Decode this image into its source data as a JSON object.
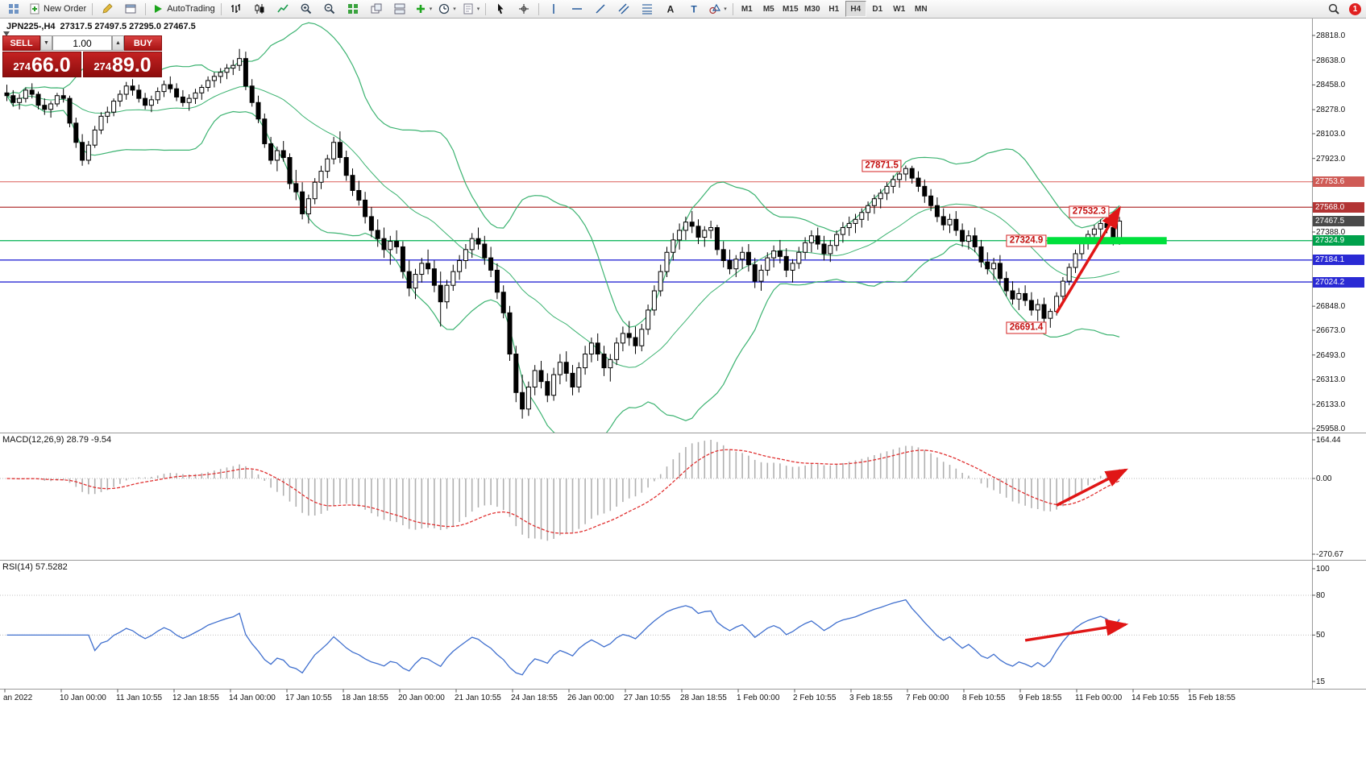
{
  "toolbar": {
    "new_order_label": "New Order",
    "autotrading_label": "AutoTrading",
    "notification_count": "1",
    "timeframes": [
      "M1",
      "M5",
      "M15",
      "M30",
      "H1",
      "H4",
      "D1",
      "W1",
      "MN"
    ],
    "active_timeframe": "H4",
    "icon_names": [
      "charts-grid-icon",
      "new-order-icon",
      "metaeditor-icon",
      "data-window-icon",
      "autotrading-play-icon",
      "bar-chart-icon",
      "candlestick-chart-icon",
      "line-chart-icon",
      "zoom-in-icon",
      "zoom-out-icon",
      "tile-windows-icon",
      "cascade-windows-icon",
      "arrange-windows-icon",
      "add-indicator-icon",
      "periods-icon",
      "templates-icon",
      "cursor-icon",
      "crosshair-icon",
      "vertical-line-icon",
      "horizontal-line-icon",
      "trendline-icon",
      "channel-icon",
      "fibonacci-icon",
      "text-icon",
      "label-icon",
      "arrows-icon",
      "search-icon"
    ]
  },
  "chart": {
    "header": {
      "symbol": "JPN225-,H4",
      "ohlc": "27317.5 27497.5 27295.0 27467.5"
    },
    "order_panel": {
      "sell_label": "SELL",
      "buy_label": "BUY",
      "volume": "1.00",
      "sell_price": "27466.0",
      "buy_price": "27489.0"
    },
    "price_axis": {
      "max": 28818.0,
      "min": 25958.0,
      "ticks": [
        "28818.0",
        "28638.0",
        "28458.0",
        "28278.0",
        "28103.0",
        "27923.0",
        "27388.0",
        "26848.0",
        "26673.0",
        "26493.0",
        "26313.0",
        "26133.0",
        "25958.0"
      ],
      "current": {
        "value": "27467.5",
        "bg": "#4a4a4a"
      }
    },
    "annotations": {
      "color": "#e01616",
      "hlines": [
        {
          "price": 27753.6,
          "label": "27753.6",
          "line_color": "#e2807d",
          "chip_bg": "#cf5b56"
        },
        {
          "price": 27568.0,
          "label": "27568.0",
          "line_color": "#b23434",
          "chip_bg": "#b23434"
        },
        {
          "price": 27324.9,
          "label": "27324.9",
          "line_color": "#00b050",
          "chip_bg": "#00a14b"
        },
        {
          "price": 27184.1,
          "label": "27184.1",
          "line_color": "#2a2ad4",
          "chip_bg": "#2a2ad4"
        },
        {
          "price": 27024.2,
          "label": "27024.2",
          "line_color": "#2a2ad4",
          "chip_bg": "#2a2ad4"
        }
      ],
      "green_zone": {
        "price": 27324.9,
        "start_index": 166,
        "end_index": 184,
        "color": "#00e03c",
        "thickness": 9
      },
      "callouts": [
        {
          "text": "27871.5",
          "index": 143,
          "price": 27871.5
        },
        {
          "text": "27532.3",
          "index": 176,
          "price": 27532.3
        },
        {
          "text": "27324.9",
          "index": 166,
          "price": 27324.9
        },
        {
          "text": "26691.4",
          "index": 166,
          "price": 26691.4
        }
      ],
      "arrows": [
        {
          "pane": "main",
          "from": {
            "index": 167,
            "value": 26800
          },
          "to": {
            "index": 177,
            "value": 27560
          }
        },
        {
          "pane": "macd",
          "from": {
            "index": 167,
            "value": -140
          },
          "to": {
            "index": 178,
            "value": 45
          }
        },
        {
          "pane": "rsi",
          "from": {
            "index": 162,
            "value": 46
          },
          "to": {
            "index": 178,
            "value": 58
          }
        }
      ]
    }
  },
  "macd": {
    "label": "MACD(12,26,9) 28.79 -9.54",
    "ticks": [
      "164.44",
      "0.00",
      "-270.67"
    ]
  },
  "rsi": {
    "label": "RSI(14) 57.5282",
    "ticks": [
      "100",
      "80",
      "50",
      "15"
    ],
    "levels": [
      80,
      50
    ]
  },
  "time_axis": {
    "labels": [
      "an 2022",
      "10 Jan 00:00",
      "11 Jan 10:55",
      "12 Jan 18:55",
      "14 Jan 00:00",
      "17 Jan 10:55",
      "18 Jan 18:55",
      "20 Jan 00:00",
      "21 Jan 10:55",
      "24 Jan 18:55",
      "26 Jan 00:00",
      "27 Jan 10:55",
      "28 Jan 18:55",
      "1 Feb 00:00",
      "2 Feb 10:55",
      "3 Feb 18:55",
      "7 Feb 00:00",
      "8 Feb 10:55",
      "9 Feb 18:55",
      "11 Feb 00:00",
      "14 Feb 10:55",
      "15 Feb 18:55"
    ]
  },
  "chart_data": {
    "type": "candlestick",
    "symbol": "JPN225-",
    "timeframe": "H4",
    "overlays": {
      "bollinger_period": 20,
      "bollinger_deviation": 2
    },
    "macd_params": [
      12,
      26,
      9
    ],
    "rsi_period": 14,
    "ohlc": [
      [
        28400,
        28460,
        28340,
        28380
      ],
      [
        28380,
        28420,
        28300,
        28330
      ],
      [
        28330,
        28390,
        28280,
        28360
      ],
      [
        28360,
        28440,
        28330,
        28420
      ],
      [
        28420,
        28470,
        28360,
        28390
      ],
      [
        28390,
        28410,
        28280,
        28310
      ],
      [
        28310,
        28360,
        28240,
        28280
      ],
      [
        28280,
        28340,
        28220,
        28320
      ],
      [
        28320,
        28400,
        28300,
        28380
      ],
      [
        28380,
        28430,
        28330,
        28360
      ],
      [
        28360,
        28380,
        28150,
        28180
      ],
      [
        28180,
        28220,
        28000,
        28040
      ],
      [
        28040,
        28100,
        27870,
        27910
      ],
      [
        27910,
        28050,
        27880,
        28020
      ],
      [
        28020,
        28160,
        28000,
        28130
      ],
      [
        28130,
        28260,
        28100,
        28230
      ],
      [
        28230,
        28300,
        28180,
        28260
      ],
      [
        28260,
        28360,
        28230,
        28340
      ],
      [
        28340,
        28420,
        28300,
        28390
      ],
      [
        28390,
        28480,
        28350,
        28450
      ],
      [
        28450,
        28500,
        28380,
        28420
      ],
      [
        28420,
        28460,
        28330,
        28360
      ],
      [
        28360,
        28400,
        28280,
        28310
      ],
      [
        28310,
        28380,
        28260,
        28350
      ],
      [
        28350,
        28440,
        28320,
        28410
      ],
      [
        28410,
        28490,
        28370,
        28460
      ],
      [
        28460,
        28520,
        28400,
        28430
      ],
      [
        28430,
        28470,
        28340,
        28370
      ],
      [
        28370,
        28420,
        28300,
        28330
      ],
      [
        28330,
        28390,
        28270,
        28360
      ],
      [
        28360,
        28430,
        28320,
        28400
      ],
      [
        28400,
        28460,
        28350,
        28440
      ],
      [
        28440,
        28520,
        28410,
        28490
      ],
      [
        28490,
        28550,
        28440,
        28520
      ],
      [
        28520,
        28580,
        28470,
        28550
      ],
      [
        28550,
        28610,
        28500,
        28580
      ],
      [
        28580,
        28640,
        28530,
        28600
      ],
      [
        28600,
        28720,
        28560,
        28650
      ],
      [
        28650,
        28700,
        28420,
        28450
      ],
      [
        28450,
        28500,
        28300,
        28330
      ],
      [
        28330,
        28380,
        28180,
        28210
      ],
      [
        28210,
        28250,
        28000,
        28030
      ],
      [
        28030,
        28080,
        27880,
        27910
      ],
      [
        27910,
        28010,
        27830,
        27980
      ],
      [
        27980,
        28050,
        27900,
        27930
      ],
      [
        27930,
        27960,
        27700,
        27740
      ],
      [
        27740,
        27840,
        27620,
        27680
      ],
      [
        27680,
        27750,
        27480,
        27520
      ],
      [
        27520,
        27660,
        27450,
        27630
      ],
      [
        27630,
        27780,
        27590,
        27750
      ],
      [
        27750,
        27870,
        27700,
        27830
      ],
      [
        27830,
        27950,
        27780,
        27920
      ],
      [
        27920,
        28080,
        27880,
        28040
      ],
      [
        28040,
        28120,
        27890,
        27930
      ],
      [
        27930,
        27980,
        27760,
        27800
      ],
      [
        27800,
        27850,
        27650,
        27690
      ],
      [
        27690,
        27760,
        27580,
        27620
      ],
      [
        27620,
        27680,
        27450,
        27500
      ],
      [
        27500,
        27570,
        27350,
        27400
      ],
      [
        27400,
        27480,
        27280,
        27340
      ],
      [
        27340,
        27420,
        27200,
        27260
      ],
      [
        27260,
        27360,
        27150,
        27320
      ],
      [
        27320,
        27400,
        27230,
        27280
      ],
      [
        27280,
        27320,
        27050,
        27100
      ],
      [
        27100,
        27180,
        26920,
        26980
      ],
      [
        26980,
        27120,
        26900,
        27080
      ],
      [
        27080,
        27200,
        27020,
        27160
      ],
      [
        27160,
        27260,
        27080,
        27120
      ],
      [
        27120,
        27180,
        26950,
        27000
      ],
      [
        27000,
        27100,
        26700,
        26880
      ],
      [
        26880,
        27040,
        26830,
        27000
      ],
      [
        27000,
        27150,
        26960,
        27100
      ],
      [
        27100,
        27220,
        27040,
        27180
      ],
      [
        27180,
        27300,
        27120,
        27260
      ],
      [
        27260,
        27380,
        27200,
        27340
      ],
      [
        27340,
        27420,
        27260,
        27300
      ],
      [
        27300,
        27360,
        27150,
        27200
      ],
      [
        27200,
        27280,
        27060,
        27110
      ],
      [
        27110,
        27160,
        26900,
        26950
      ],
      [
        26950,
        27000,
        26760,
        26800
      ],
      [
        26800,
        26850,
        26450,
        26500
      ],
      [
        26500,
        26560,
        26150,
        26220
      ],
      [
        26220,
        26350,
        26030,
        26100
      ],
      [
        26100,
        26300,
        26050,
        26260
      ],
      [
        26260,
        26420,
        26200,
        26380
      ],
      [
        26380,
        26450,
        26250,
        26300
      ],
      [
        26300,
        26360,
        26150,
        26200
      ],
      [
        26200,
        26400,
        26160,
        26350
      ],
      [
        26350,
        26500,
        26280,
        26440
      ],
      [
        26440,
        26520,
        26300,
        26360
      ],
      [
        26360,
        26420,
        26200,
        26260
      ],
      [
        26260,
        26440,
        26220,
        26400
      ],
      [
        26400,
        26560,
        26350,
        26500
      ],
      [
        26500,
        26620,
        26440,
        26580
      ],
      [
        26580,
        26650,
        26450,
        26500
      ],
      [
        26500,
        26560,
        26340,
        26400
      ],
      [
        26400,
        26500,
        26300,
        26460
      ],
      [
        26460,
        26620,
        26420,
        26580
      ],
      [
        26580,
        26700,
        26520,
        26650
      ],
      [
        26650,
        26740,
        26560,
        26620
      ],
      [
        26620,
        26700,
        26500,
        26560
      ],
      [
        26560,
        26720,
        26520,
        26680
      ],
      [
        26680,
        26860,
        26640,
        26820
      ],
      [
        26820,
        27000,
        26780,
        26960
      ],
      [
        26960,
        27150,
        26920,
        27100
      ],
      [
        27100,
        27280,
        27060,
        27240
      ],
      [
        27240,
        27380,
        27180,
        27330
      ],
      [
        27330,
        27450,
        27260,
        27400
      ],
      [
        27400,
        27500,
        27330,
        27460
      ],
      [
        27460,
        27540,
        27380,
        27430
      ],
      [
        27430,
        27480,
        27300,
        27350
      ],
      [
        27350,
        27430,
        27280,
        27400
      ],
      [
        27400,
        27470,
        27340,
        27420
      ],
      [
        27420,
        27440,
        27220,
        27260
      ],
      [
        27260,
        27320,
        27130,
        27180
      ],
      [
        27180,
        27260,
        27080,
        27120
      ],
      [
        27120,
        27220,
        27060,
        27190
      ],
      [
        27190,
        27280,
        27120,
        27240
      ],
      [
        27240,
        27300,
        27100,
        27150
      ],
      [
        27150,
        27200,
        26980,
        27030
      ],
      [
        27030,
        27150,
        26960,
        27110
      ],
      [
        27110,
        27240,
        27070,
        27200
      ],
      [
        27200,
        27290,
        27130,
        27250
      ],
      [
        27250,
        27330,
        27160,
        27210
      ],
      [
        27210,
        27270,
        27060,
        27110
      ],
      [
        27110,
        27190,
        27020,
        27160
      ],
      [
        27160,
        27280,
        27120,
        27240
      ],
      [
        27240,
        27350,
        27190,
        27310
      ],
      [
        27310,
        27400,
        27240,
        27360
      ],
      [
        27360,
        27420,
        27260,
        27300
      ],
      [
        27300,
        27360,
        27180,
        27230
      ],
      [
        27230,
        27330,
        27170,
        27290
      ],
      [
        27290,
        27400,
        27250,
        27370
      ],
      [
        27370,
        27460,
        27310,
        27420
      ],
      [
        27420,
        27500,
        27360,
        27450
      ],
      [
        27450,
        27520,
        27380,
        27480
      ],
      [
        27480,
        27560,
        27420,
        27530
      ],
      [
        27530,
        27610,
        27470,
        27580
      ],
      [
        27580,
        27660,
        27520,
        27630
      ],
      [
        27630,
        27700,
        27560,
        27670
      ],
      [
        27670,
        27750,
        27620,
        27720
      ],
      [
        27720,
        27800,
        27670,
        27770
      ],
      [
        27770,
        27840,
        27710,
        27810
      ],
      [
        27810,
        27871.5,
        27760,
        27850
      ],
      [
        27850,
        27870,
        27740,
        27780
      ],
      [
        27780,
        27830,
        27680,
        27720
      ],
      [
        27720,
        27770,
        27600,
        27650
      ],
      [
        27650,
        27700,
        27540,
        27580
      ],
      [
        27580,
        27640,
        27460,
        27500
      ],
      [
        27500,
        27560,
        27400,
        27440
      ],
      [
        27440,
        27520,
        27380,
        27480
      ],
      [
        27480,
        27540,
        27360,
        27400
      ],
      [
        27400,
        27450,
        27280,
        27320
      ],
      [
        27320,
        27400,
        27260,
        27360
      ],
      [
        27360,
        27420,
        27240,
        27280
      ],
      [
        27280,
        27330,
        27130,
        27170
      ],
      [
        27170,
        27240,
        27080,
        27120
      ],
      [
        27120,
        27200,
        27040,
        27160
      ],
      [
        27160,
        27220,
        27000,
        27050
      ],
      [
        27050,
        27100,
        26920,
        26960
      ],
      [
        26960,
        27030,
        26860,
        26900
      ],
      [
        26900,
        26980,
        26820,
        26940
      ],
      [
        26940,
        27000,
        26850,
        26890
      ],
      [
        26890,
        26950,
        26780,
        26820
      ],
      [
        26820,
        26900,
        26740,
        26860
      ],
      [
        26860,
        26910,
        26700,
        26760
      ],
      [
        26760,
        26830,
        26691.4,
        26810
      ],
      [
        26810,
        26950,
        26780,
        26920
      ],
      [
        26920,
        27060,
        26890,
        27030
      ],
      [
        27030,
        27160,
        27000,
        27130
      ],
      [
        27130,
        27260,
        27090,
        27230
      ],
      [
        27230,
        27340,
        27190,
        27310
      ],
      [
        27310,
        27400,
        27260,
        27370
      ],
      [
        27370,
        27440,
        27320,
        27410
      ],
      [
        27410,
        27480,
        27350,
        27450
      ],
      [
        27450,
        27532.3,
        27380,
        27420
      ],
      [
        27420,
        27460,
        27290,
        27317.5
      ],
      [
        27317.5,
        27497.5,
        27295,
        27467.5
      ]
    ]
  }
}
